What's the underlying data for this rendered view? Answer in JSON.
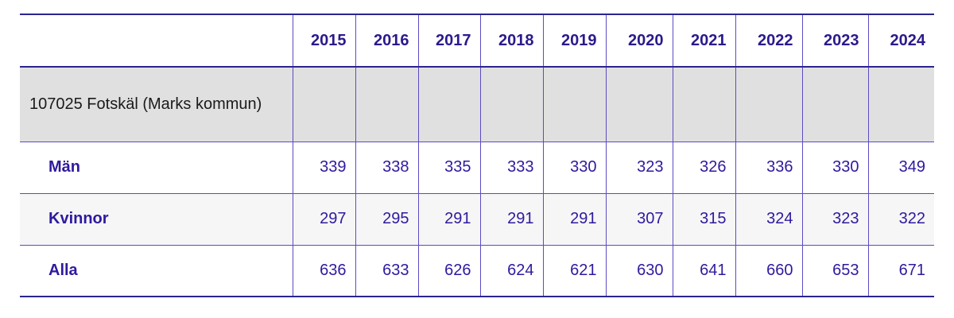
{
  "table": {
    "columns": [
      2015,
      2016,
      2017,
      2018,
      2019,
      2020,
      2021,
      2022,
      2023,
      2024
    ],
    "group": "107025 Fotskäl (Marks kommun)",
    "rows": [
      {
        "label": "Män",
        "values": [
          339,
          338,
          335,
          333,
          330,
          323,
          326,
          336,
          330,
          349
        ]
      },
      {
        "label": "Kvinnor",
        "values": [
          297,
          295,
          291,
          291,
          291,
          307,
          315,
          324,
          323,
          322
        ]
      },
      {
        "label": "Alla",
        "values": [
          636,
          633,
          626,
          624,
          621,
          630,
          641,
          660,
          653,
          671
        ]
      }
    ]
  }
}
